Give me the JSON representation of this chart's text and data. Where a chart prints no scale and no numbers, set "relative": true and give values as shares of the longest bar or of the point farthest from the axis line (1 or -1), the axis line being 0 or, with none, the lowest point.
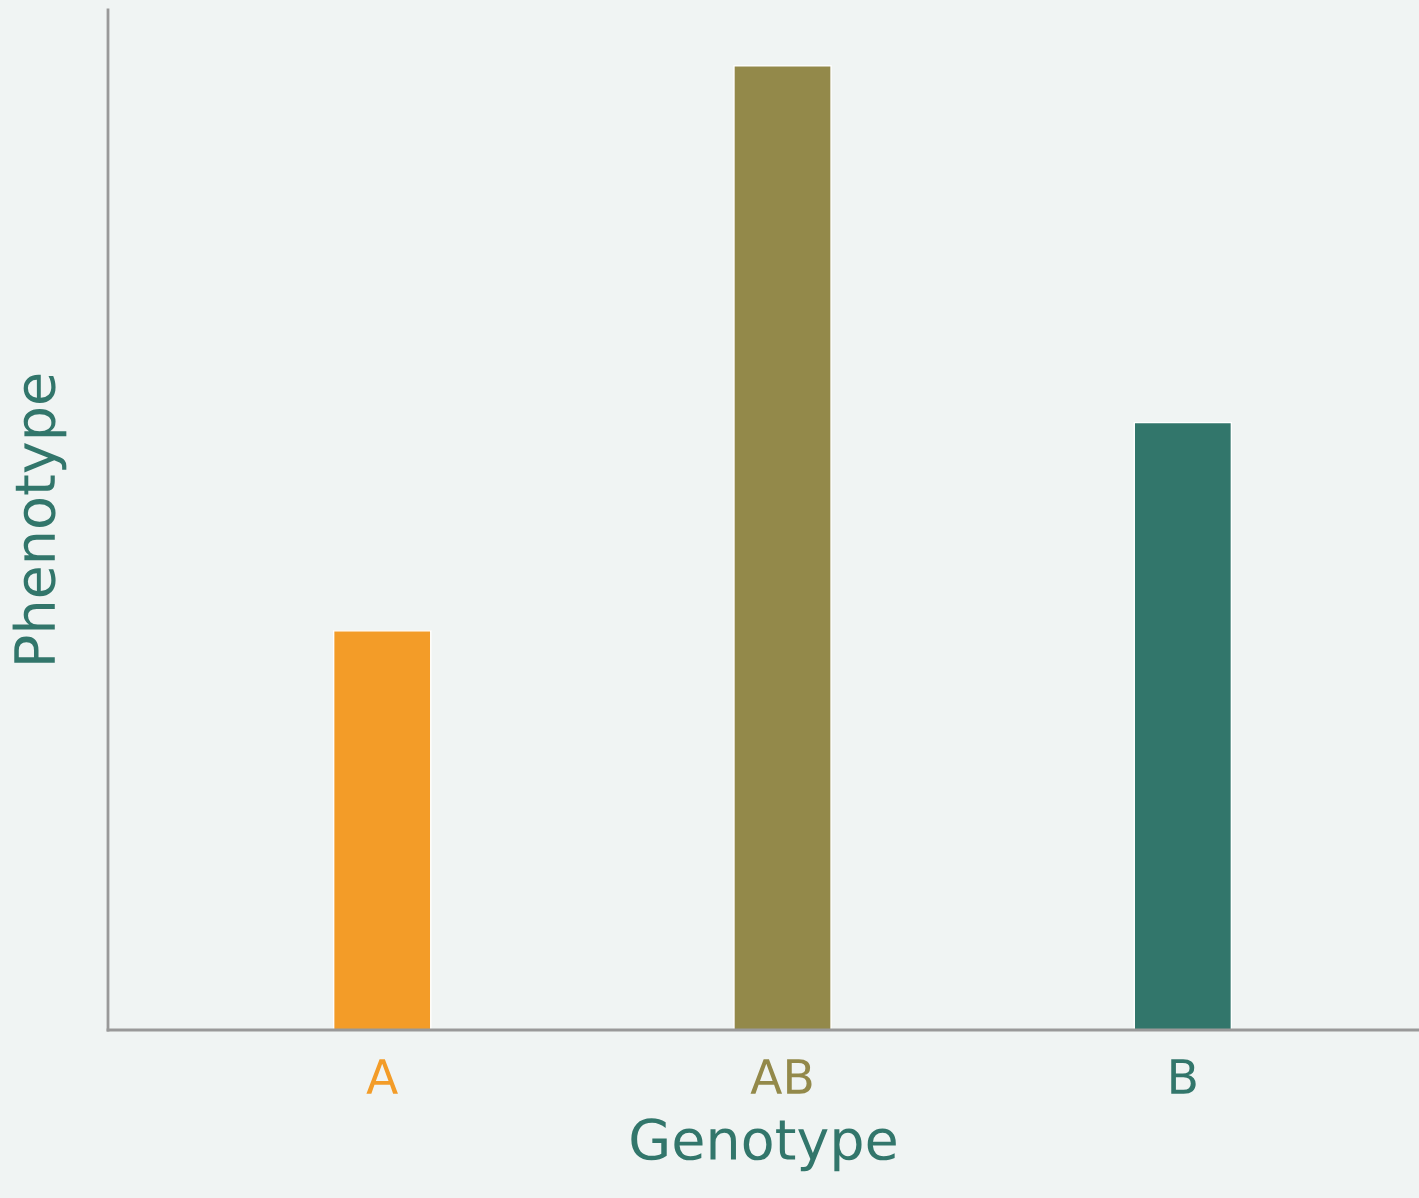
{
  "chart_data": {
    "type": "bar",
    "xlabel": "Genotype",
    "ylabel": "Phenotype",
    "relative": true,
    "categories": [
      "A",
      "AB",
      "B"
    ],
    "values": [
      0.414,
      1,
      0.63
    ],
    "colors": [
      "#f39c28",
      "#93894a",
      "#32766b"
    ]
  }
}
